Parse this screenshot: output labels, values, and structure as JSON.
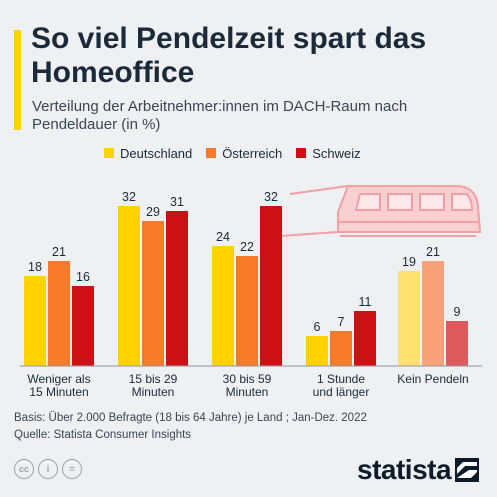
{
  "title": "So viel Pendelzeit spart das Homeoffice",
  "subtitle": "Verteilung der Arbeitnehmer:innen im DACH-Raum nach Pendeldauer (in %)",
  "chart_data": {
    "type": "bar",
    "title": "So viel Pendelzeit spart das Homeoffice",
    "subtitle": "Verteilung der Arbeitnehmer:innen im DACH-Raum nach Pendeldauer (in %)",
    "categories": [
      [
        "Weniger als",
        "15 Minuten"
      ],
      [
        "15 bis 29",
        "Minuten"
      ],
      [
        "30 bis 59",
        "Minuten"
      ],
      [
        "1 Stunde",
        "und länger"
      ],
      [
        "Kein Pendeln"
      ]
    ],
    "series": [
      {
        "name": "Deutschland",
        "color": "#ffd200",
        "values": [
          18,
          32,
          24,
          6,
          19
        ]
      },
      {
        "name": "Österreich",
        "color": "#f77a2b",
        "values": [
          21,
          29,
          22,
          7,
          21
        ]
      },
      {
        "name": "Schweiz",
        "color": "#cc1016",
        "values": [
          16,
          31,
          32,
          11,
          9
        ]
      }
    ],
    "highlight_last_category_muted": true,
    "muted_colors": [
      "#ffe071",
      "#f9a27a",
      "#de5a5d"
    ],
    "ylim": [
      0,
      34
    ],
    "xlabel": "",
    "ylabel": "",
    "grid": false,
    "legend_position": "top"
  },
  "footer": {
    "basis": "Basis: Über 2.000 Befragte (18 bis 64 Jahre) je Land ; Jan-Dez. 2022",
    "source": "Quelle: Statista Consumer Insights"
  },
  "license_icons": [
    "cc-icon",
    "person-icon",
    "equals-icon"
  ],
  "logo": {
    "text": "statista"
  }
}
